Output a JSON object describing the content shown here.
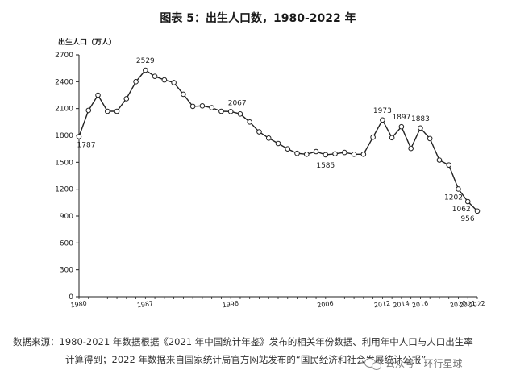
{
  "title": "图表 5：出生人口数，1980-2022 年",
  "source": {
    "line1": "数据来源：1980-2021 年数据根据《2021 年中国统计年鉴》发布的相关年份数据、利用年中人口与人口出生率",
    "line2": "计算得到；2022 年数据来自国家统计局官方网站发布的“国民经济和社会发展统计公报”"
  },
  "watermark": {
    "text": "公众号 · 环行星球",
    "icon": "wechat-icon"
  },
  "colors": {
    "line": "#222222",
    "marker_fill": "#ffffff",
    "axis": "#222222"
  },
  "chart_data": {
    "type": "line",
    "title": "图表 5：出生人口数，1980-2022 年",
    "ylabel": "出生人口（万人）",
    "xlabel": "",
    "ylim": [
      0,
      2700
    ],
    "yticks": [
      0,
      300,
      600,
      900,
      1200,
      1500,
      1800,
      2100,
      2400,
      2700
    ],
    "xlim": [
      1980,
      2022
    ],
    "xticks": [
      1980,
      1987,
      1996,
      2006,
      2012,
      2014,
      2016,
      2020,
      2021,
      2022
    ],
    "grid": false,
    "x": [
      1980,
      1981,
      1982,
      1983,
      1984,
      1985,
      1986,
      1987,
      1988,
      1989,
      1990,
      1991,
      1992,
      1993,
      1994,
      1995,
      1996,
      1997,
      1998,
      1999,
      2000,
      2001,
      2002,
      2003,
      2004,
      2005,
      2006,
      2007,
      2008,
      2009,
      2010,
      2011,
      2012,
      2013,
      2014,
      2015,
      2016,
      2017,
      2018,
      2019,
      2020,
      2021,
      2022
    ],
    "values": [
      1787,
      2080,
      2250,
      2070,
      2070,
      2210,
      2400,
      2529,
      2460,
      2420,
      2390,
      2260,
      2125,
      2130,
      2110,
      2070,
      2067,
      2040,
      1950,
      1840,
      1770,
      1710,
      1650,
      1600,
      1590,
      1620,
      1585,
      1595,
      1610,
      1590,
      1590,
      1780,
      1973,
      1775,
      1897,
      1655,
      1883,
      1765,
      1525,
      1470,
      1202,
      1062,
      956
    ],
    "data_labels": [
      {
        "x": 1980,
        "label": "1787"
      },
      {
        "x": 1987,
        "label": "2529"
      },
      {
        "x": 1996,
        "label": "2067"
      },
      {
        "x": 2006,
        "label": "1585"
      },
      {
        "x": 2012,
        "label": "1973"
      },
      {
        "x": 2014,
        "label": "1897"
      },
      {
        "x": 2016,
        "label": "1883"
      },
      {
        "x": 2020,
        "label": "1202"
      },
      {
        "x": 2021,
        "label": "1062"
      },
      {
        "x": 2022,
        "label": "956"
      }
    ]
  }
}
